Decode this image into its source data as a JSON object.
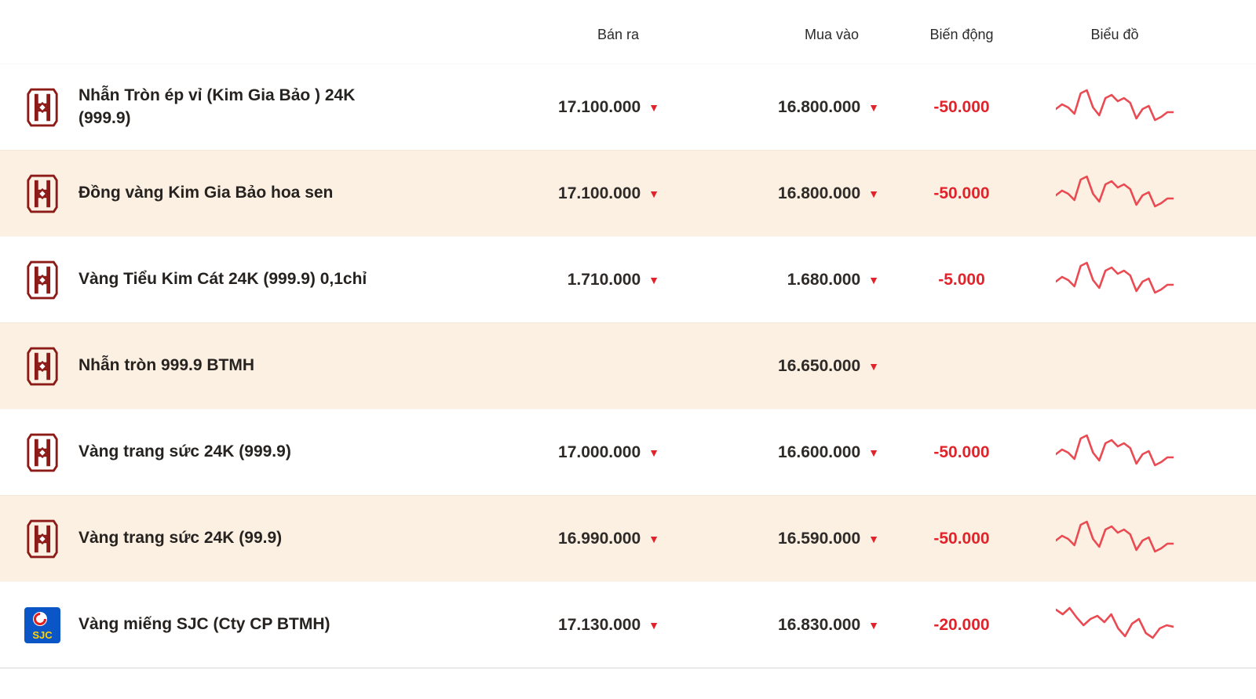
{
  "header": {
    "sell": "Bán ra",
    "buy": "Mua vào",
    "change": "Biến động",
    "chart": "Biểu đồ"
  },
  "colors": {
    "accent_red": "#e1242b",
    "stripe": "#fbf0e2",
    "spark": "#ea4a52",
    "btmh_logo": "#8c1b17",
    "sjc_blue": "#0a56c6",
    "sjc_yellow": "#ffd400"
  },
  "rows": [
    {
      "brand": "btmh-logo",
      "name": "Nhẫn Tròn ép vỉ (Kim Gia Bảo ) 24K (999.9)",
      "sell": "17.100.000",
      "sell_dir": "▼",
      "buy": "16.800.000",
      "buy_dir": "▼",
      "change": "-50.000",
      "spark": [
        32,
        26,
        30,
        38,
        12,
        8,
        30,
        40,
        18,
        14,
        22,
        18,
        24,
        44,
        32,
        28,
        46,
        42,
        36,
        36
      ]
    },
    {
      "brand": "btmh-logo",
      "name": "Đồng vàng Kim Gia Bảo hoa sen",
      "sell": "17.100.000",
      "sell_dir": "▼",
      "buy": "16.800.000",
      "buy_dir": "▼",
      "change": "-50.000",
      "spark": [
        32,
        26,
        30,
        38,
        12,
        8,
        30,
        40,
        18,
        14,
        22,
        18,
        24,
        44,
        32,
        28,
        46,
        42,
        36,
        36
      ]
    },
    {
      "brand": "btmh-logo",
      "name": "Vàng Tiểu Kim Cát 24K (999.9) 0,1chỉ",
      "sell": "1.710.000",
      "sell_dir": "▼",
      "buy": "1.680.000",
      "buy_dir": "▼",
      "change": "-5.000",
      "spark": [
        32,
        26,
        30,
        38,
        12,
        8,
        30,
        40,
        18,
        14,
        22,
        18,
        24,
        44,
        32,
        28,
        46,
        42,
        36,
        36
      ]
    },
    {
      "brand": "btmh-logo",
      "name": "Nhẫn tròn 999.9 BTMH",
      "sell": "",
      "sell_dir": "",
      "buy": "16.650.000",
      "buy_dir": "▼",
      "change": "",
      "spark": null
    },
    {
      "brand": "btmh-logo",
      "name": "Vàng trang sức 24K (999.9)",
      "sell": "17.000.000",
      "sell_dir": "▼",
      "buy": "16.600.000",
      "buy_dir": "▼",
      "change": "-50.000",
      "spark": [
        32,
        26,
        30,
        38,
        12,
        8,
        30,
        40,
        18,
        14,
        22,
        18,
        24,
        44,
        32,
        28,
        46,
        42,
        36,
        36
      ]
    },
    {
      "brand": "btmh-logo",
      "name": "Vàng trang sức 24K (99.9)",
      "sell": "16.990.000",
      "sell_dir": "▼",
      "buy": "16.590.000",
      "buy_dir": "▼",
      "change": "-50.000",
      "spark": [
        32,
        26,
        30,
        38,
        12,
        8,
        30,
        40,
        18,
        14,
        22,
        18,
        24,
        44,
        32,
        28,
        46,
        42,
        36,
        36
      ]
    },
    {
      "brand": "sjc-logo",
      "name": "Vàng miếng SJC (Cty CP BTMH)",
      "sell": "17.130.000",
      "sell_dir": "▼",
      "buy": "16.830.000",
      "buy_dir": "▼",
      "change": "-20.000",
      "spark": [
        10,
        16,
        8,
        20,
        30,
        22,
        18,
        26,
        16,
        34,
        44,
        28,
        22,
        40,
        46,
        34,
        30,
        32
      ]
    }
  ]
}
